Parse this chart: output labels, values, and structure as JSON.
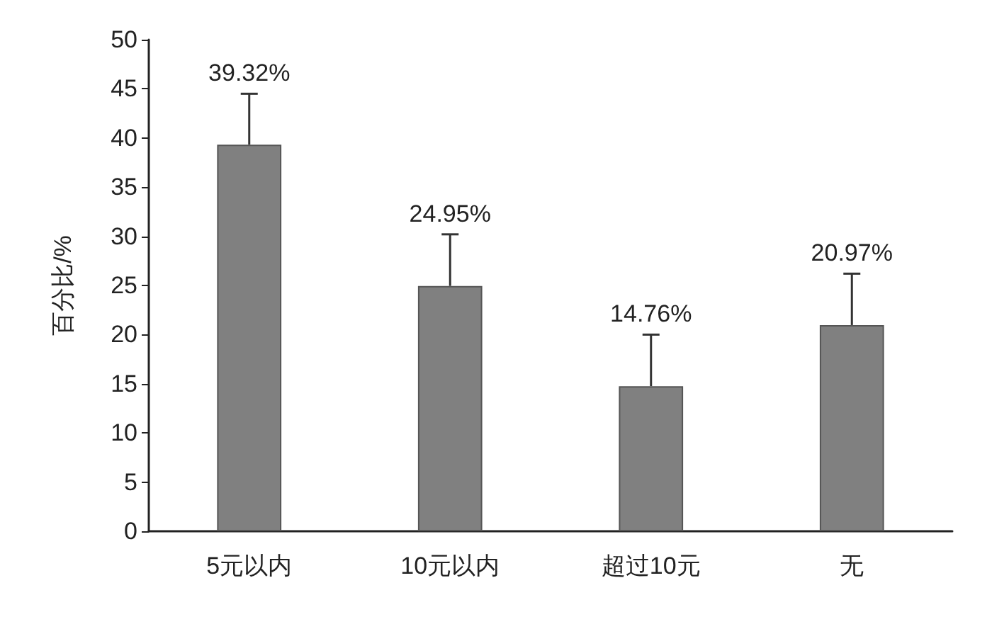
{
  "chart_data": {
    "type": "bar",
    "ylabel": "百分比/%",
    "categories": [
      "5元以内",
      "10元以内",
      "超过10元",
      "无"
    ],
    "values": [
      39.32,
      24.95,
      14.76,
      20.97
    ],
    "color": "#808080",
    "errors": [
      [
        39.32,
        44.5
      ],
      [
        24.95,
        30.2
      ],
      [
        14.76,
        20
      ],
      [
        20.97,
        26.2
      ]
    ],
    "value_labels": [
      "39.32%",
      "24.95%",
      "14.76%",
      "20.97%"
    ],
    "ylim": [
      0,
      50
    ],
    "yticks": [
      0,
      5,
      10,
      15,
      20,
      25,
      30,
      35,
      40,
      45,
      50
    ],
    "grid": false
  }
}
